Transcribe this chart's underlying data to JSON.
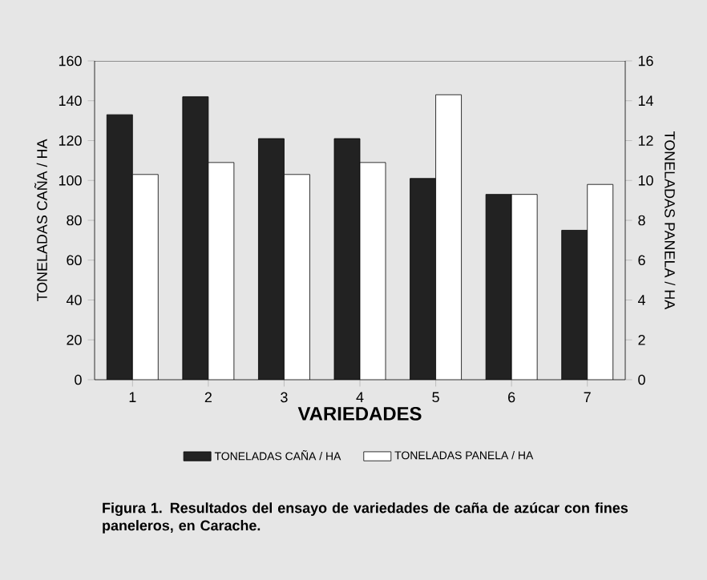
{
  "chart_data": {
    "type": "bar",
    "title": "Figura 1. Resultados del ensayo de variedades de caña de azúcar con fines paneleros, en Carache.",
    "xlabel": "VARIEDADES",
    "ylabel": "TONELADAS CAÑA / HA",
    "y2label": "TONELADAS PANELA / HA",
    "categories": [
      "1",
      "2",
      "3",
      "4",
      "5",
      "6",
      "7"
    ],
    "series": [
      {
        "name": "TONELADAS CAÑA / HA",
        "color": "#222222",
        "values": [
          133,
          142,
          121,
          121,
          101,
          93,
          75
        ]
      },
      {
        "name": "TONELADAS PANELA / HA",
        "color": "#ffffff",
        "axis": "y2",
        "values": [
          10.3,
          10.9,
          10.3,
          10.9,
          14.3,
          9.3,
          9.8
        ]
      }
    ],
    "ylim": [
      0,
      160
    ],
    "yticks": [
      0,
      20,
      40,
      60,
      80,
      100,
      120,
      140,
      160
    ],
    "y2lim": [
      0,
      16
    ],
    "y2ticks": [
      0,
      2,
      4,
      6,
      8,
      10,
      12,
      14,
      16
    ],
    "legend": "bottom"
  }
}
